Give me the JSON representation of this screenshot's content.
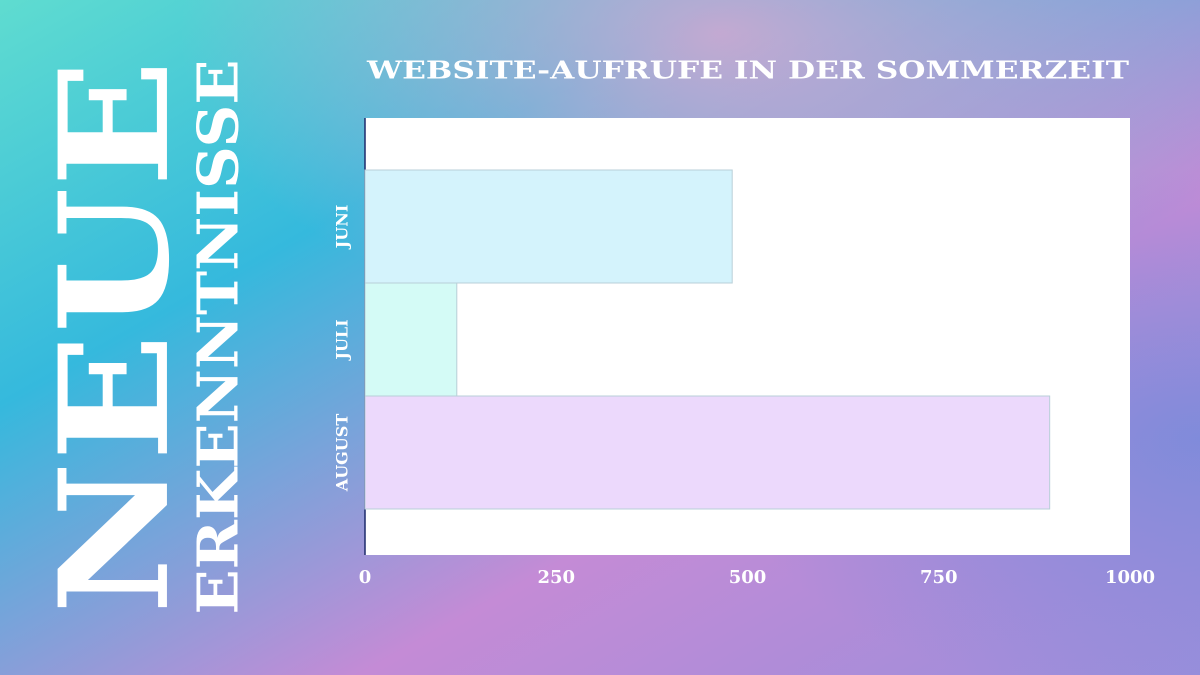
{
  "slide": {
    "headline": "NEUE",
    "subheadline": "ERKENNTNISSE"
  },
  "chart_data": {
    "type": "bar",
    "orientation": "horizontal",
    "title": "WEBSITE-AUFRUFE IN DER SOMMERZEIT",
    "categories": [
      "JUNI",
      "JULI",
      "AUGUST"
    ],
    "values": [
      480,
      120,
      895
    ],
    "colors": [
      "#d4f3fc",
      "#d4fbf6",
      "#ecd9fc"
    ],
    "xlim": [
      0,
      1000
    ],
    "xticks": [
      0,
      250,
      500,
      750,
      1000
    ],
    "grid": false
  }
}
